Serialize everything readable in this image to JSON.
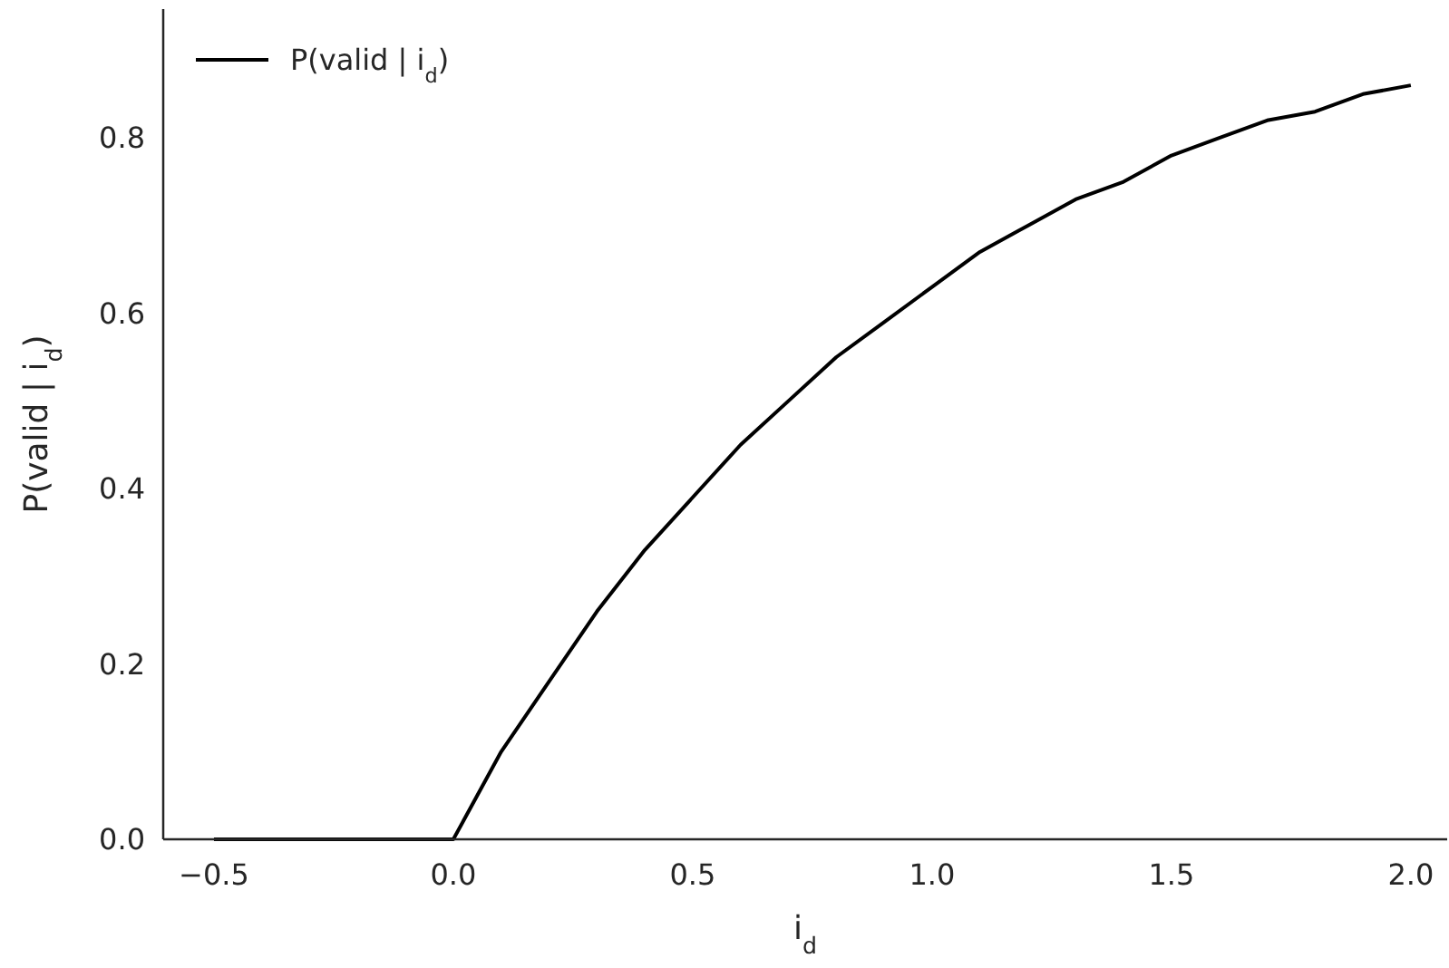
{
  "chart_data": {
    "type": "line",
    "xlabel": "i$_{d}$",
    "ylabel": "P(valid | i$_{d}$)",
    "x": [
      -0.5,
      -0.25,
      0,
      0.1,
      0.2,
      0.3,
      0.4,
      0.5,
      0.6,
      0.7,
      0.8,
      0.9,
      1.0,
      1.1,
      1.2,
      1.3,
      1.4,
      1.5,
      1.6,
      1.7,
      1.8,
      1.9,
      2.0
    ],
    "series": [
      {
        "name": "P(valid | i$_{d}$)",
        "color": "#000000",
        "values": [
          0,
          0,
          0,
          0.1,
          0.18,
          0.26,
          0.33,
          0.39,
          0.45,
          0.5,
          0.55,
          0.59,
          0.63,
          0.67,
          0.7,
          0.73,
          0.75,
          0.78,
          0.8,
          0.82,
          0.83,
          0.85,
          0.86
        ]
      }
    ],
    "xlim": [
      -0.606,
      2.076
    ],
    "ylim": [
      0,
      0.947
    ],
    "xticks": [
      {
        "value": -0.5,
        "label": "−0.5"
      },
      {
        "value": 0,
        "label": "0.0"
      },
      {
        "value": 0.5,
        "label": "0.5"
      },
      {
        "value": 1,
        "label": "1.0"
      },
      {
        "value": 1.5,
        "label": "1.5"
      },
      {
        "value": 2,
        "label": "2.0"
      }
    ],
    "yticks": [
      {
        "value": 0,
        "label": "0.0"
      },
      {
        "value": 0.2,
        "label": "0.2"
      },
      {
        "value": 0.4,
        "label": "0.4"
      },
      {
        "value": 0.6,
        "label": "0.6"
      },
      {
        "value": 0.8,
        "label": "0.8"
      }
    ],
    "grid": false,
    "legend": "top left",
    "marker": "none",
    "line_style": "solid"
  }
}
